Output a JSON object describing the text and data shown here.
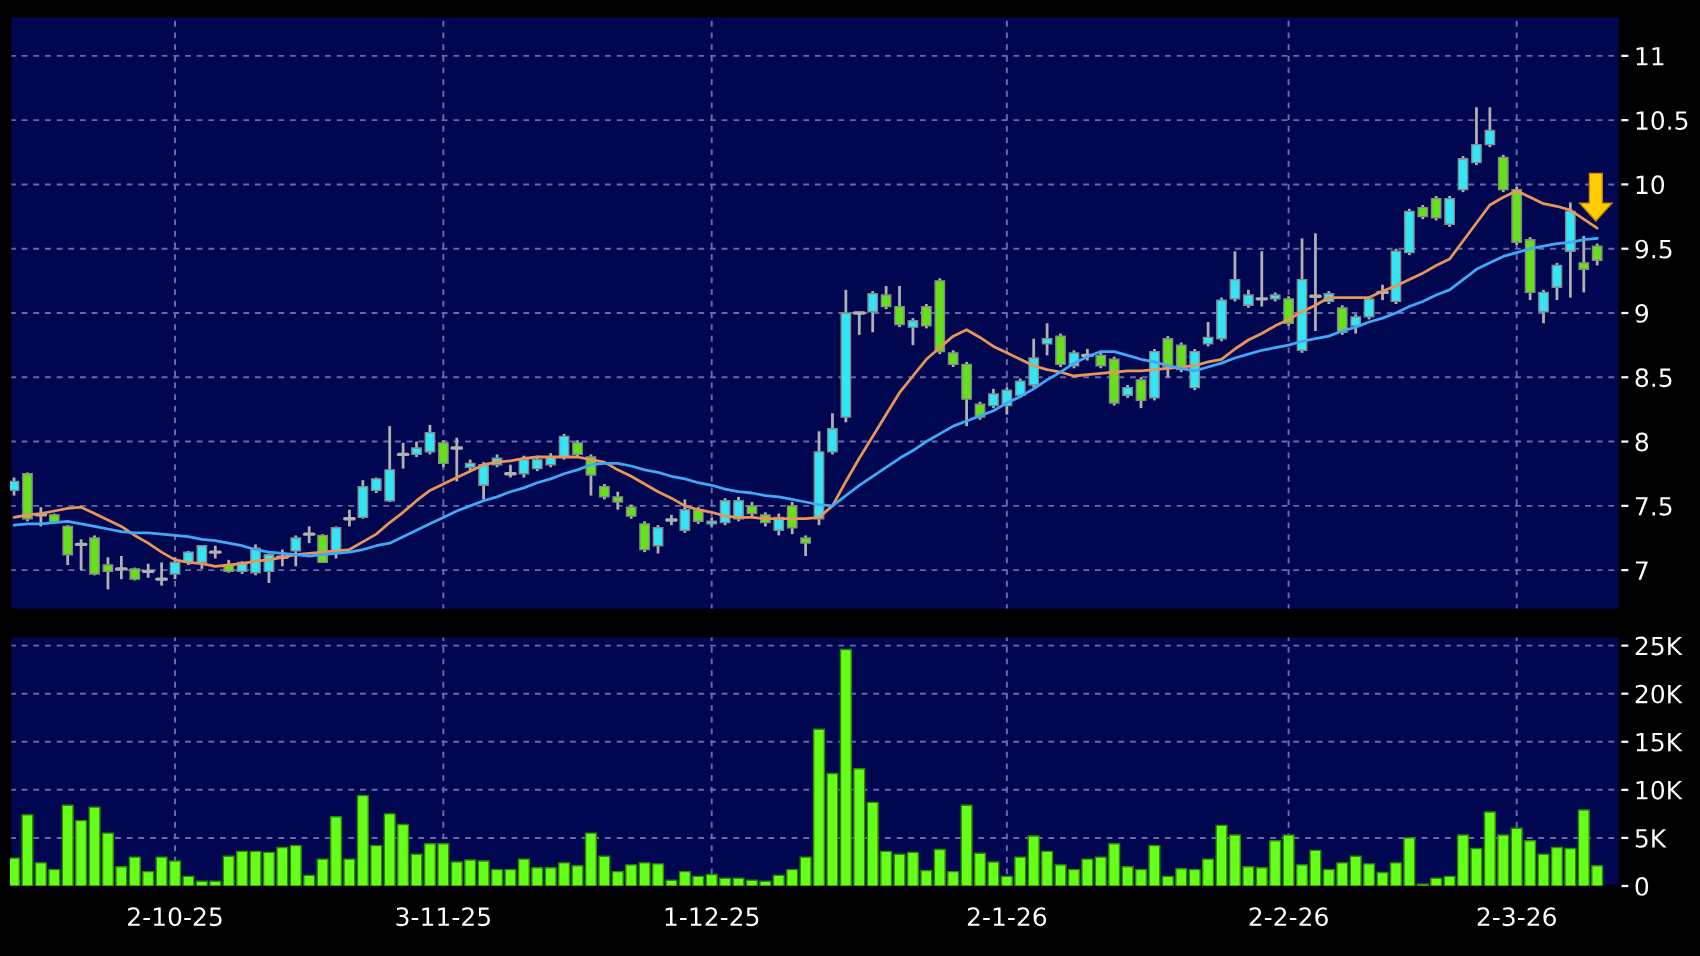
{
  "chart_data": [
    {
      "type": "candlestick",
      "grid": true,
      "tick_labels": "y",
      "ylim": [
        6.69,
        11.31
      ],
      "yticks": [
        7,
        7.5,
        8,
        8.5,
        9,
        9.5,
        10,
        10.5,
        11
      ],
      "categories": [
        null,
        null,
        null,
        null,
        null,
        null,
        null,
        null,
        null,
        null,
        null,
        null,
        null,
        null,
        null,
        null,
        null,
        null,
        null,
        null,
        null,
        null,
        null,
        null,
        null,
        null,
        null,
        null,
        null,
        null,
        null,
        null,
        null,
        null,
        null,
        null,
        null,
        null,
        null,
        null,
        null,
        null,
        null,
        null,
        null,
        null,
        null,
        null,
        null,
        null,
        null,
        null,
        null,
        null,
        null,
        null,
        null,
        null,
        null,
        null,
        null,
        null,
        null,
        null,
        null,
        null,
        null,
        null,
        null,
        null,
        null,
        null,
        null,
        null,
        null,
        null,
        null,
        null,
        null,
        null,
        null,
        null,
        null,
        null,
        null,
        null,
        null,
        null,
        null,
        null,
        null,
        null,
        null,
        null,
        null,
        null,
        null,
        null,
        null,
        null,
        null,
        null,
        null,
        null,
        null,
        null,
        null,
        null,
        null,
        null,
        null,
        null,
        null,
        null,
        null,
        null,
        null,
        null,
        null
      ],
      "ohlc": [
        [
          7.62,
          7.72,
          7.58,
          7.69
        ],
        [
          7.75,
          7.76,
          7.38,
          7.4
        ],
        [
          7.43,
          7.49,
          7.34,
          7.43
        ],
        [
          7.43,
          7.44,
          7.36,
          7.37
        ],
        [
          7.34,
          7.35,
          7.04,
          7.12
        ],
        [
          7.2,
          7.24,
          7.0,
          7.2
        ],
        [
          7.25,
          7.27,
          6.96,
          6.97
        ],
        [
          7.04,
          7.1,
          6.85,
          6.99
        ],
        [
          7.01,
          7.11,
          6.93,
          7.01
        ],
        [
          7.01,
          7.02,
          6.92,
          6.93
        ],
        [
          6.99,
          7.05,
          6.94,
          6.99
        ],
        [
          6.93,
          7.06,
          6.88,
          6.93
        ],
        [
          6.97,
          7.1,
          6.93,
          7.06
        ],
        [
          7.06,
          7.15,
          7.04,
          7.14
        ],
        [
          7.06,
          7.19,
          7.01,
          7.19
        ],
        [
          7.14,
          7.19,
          7.09,
          7.14
        ],
        [
          7.04,
          7.08,
          6.98,
          6.99
        ],
        [
          6.99,
          7.07,
          6.97,
          7.06
        ],
        [
          6.98,
          7.2,
          6.96,
          7.17
        ],
        [
          6.99,
          7.13,
          6.9,
          7.12
        ],
        [
          7.1,
          7.16,
          7.03,
          7.1
        ],
        [
          7.15,
          7.27,
          7.03,
          7.25
        ],
        [
          7.28,
          7.34,
          7.21,
          7.28
        ],
        [
          7.27,
          7.28,
          7.06,
          7.06
        ],
        [
          7.15,
          7.34,
          7.09,
          7.33
        ],
        [
          7.4,
          7.47,
          7.34,
          7.4
        ],
        [
          7.41,
          7.7,
          7.4,
          7.65
        ],
        [
          7.62,
          7.72,
          7.6,
          7.71
        ],
        [
          7.54,
          8.12,
          7.53,
          7.78
        ],
        [
          7.9,
          7.99,
          7.79,
          7.9
        ],
        [
          7.9,
          8.0,
          7.88,
          7.95
        ],
        [
          7.92,
          8.13,
          7.9,
          8.07
        ],
        [
          7.99,
          8.01,
          7.8,
          7.83
        ],
        [
          7.95,
          8.03,
          7.69,
          7.95
        ],
        [
          7.8,
          7.86,
          7.77,
          7.83
        ],
        [
          7.66,
          7.84,
          7.55,
          7.82
        ],
        [
          7.82,
          7.9,
          7.8,
          7.87
        ],
        [
          7.75,
          7.82,
          7.72,
          7.75
        ],
        [
          7.75,
          7.89,
          7.72,
          7.86
        ],
        [
          7.79,
          7.89,
          7.77,
          7.86
        ],
        [
          7.82,
          7.91,
          7.8,
          7.88
        ],
        [
          7.88,
          8.06,
          7.86,
          8.04
        ],
        [
          7.99,
          8.01,
          7.88,
          7.9
        ],
        [
          7.88,
          7.9,
          7.58,
          7.74
        ],
        [
          7.65,
          7.67,
          7.55,
          7.57
        ],
        [
          7.57,
          7.61,
          7.47,
          7.53
        ],
        [
          7.49,
          7.51,
          7.4,
          7.42
        ],
        [
          7.36,
          7.38,
          7.14,
          7.16
        ],
        [
          7.19,
          7.35,
          7.13,
          7.33
        ],
        [
          7.39,
          7.43,
          7.35,
          7.39
        ],
        [
          7.31,
          7.55,
          7.29,
          7.47
        ],
        [
          7.47,
          7.49,
          7.36,
          7.38
        ],
        [
          7.36,
          7.41,
          7.34,
          7.38
        ],
        [
          7.37,
          7.56,
          7.35,
          7.54
        ],
        [
          7.4,
          7.57,
          7.38,
          7.54
        ],
        [
          7.5,
          7.53,
          7.41,
          7.44
        ],
        [
          7.43,
          7.45,
          7.34,
          7.37
        ],
        [
          7.31,
          7.44,
          7.27,
          7.41
        ],
        [
          7.5,
          7.53,
          7.28,
          7.33
        ],
        [
          7.25,
          7.27,
          7.11,
          7.21
        ],
        [
          7.4,
          8.08,
          7.35,
          7.92
        ],
        [
          7.92,
          8.22,
          7.9,
          8.1
        ],
        [
          8.19,
          9.18,
          8.15,
          9.0
        ],
        [
          9.0,
          9.01,
          8.83,
          9.0
        ],
        [
          9.01,
          9.17,
          8.85,
          9.15
        ],
        [
          9.14,
          9.21,
          9.03,
          9.05
        ],
        [
          9.05,
          9.21,
          8.89,
          8.91
        ],
        [
          8.89,
          8.96,
          8.75,
          8.94
        ],
        [
          9.05,
          9.07,
          8.88,
          8.9
        ],
        [
          9.25,
          9.27,
          8.68,
          8.7
        ],
        [
          8.69,
          8.71,
          8.58,
          8.6
        ],
        [
          8.6,
          8.62,
          8.12,
          8.33
        ],
        [
          8.29,
          8.31,
          8.17,
          8.19
        ],
        [
          8.28,
          8.41,
          8.26,
          8.37
        ],
        [
          8.28,
          8.42,
          8.21,
          8.4
        ],
        [
          8.36,
          8.49,
          8.34,
          8.47
        ],
        [
          8.44,
          8.8,
          8.42,
          8.65
        ],
        [
          8.76,
          8.92,
          8.67,
          8.8
        ],
        [
          8.82,
          8.84,
          8.58,
          8.6
        ],
        [
          8.59,
          8.71,
          8.57,
          8.69
        ],
        [
          8.67,
          8.72,
          8.63,
          8.67
        ],
        [
          8.67,
          8.69,
          8.57,
          8.59
        ],
        [
          8.64,
          8.66,
          8.28,
          8.3
        ],
        [
          8.36,
          8.44,
          8.34,
          8.42
        ],
        [
          8.48,
          8.5,
          8.26,
          8.32
        ],
        [
          8.34,
          8.72,
          8.32,
          8.7
        ],
        [
          8.8,
          8.82,
          8.5,
          8.58
        ],
        [
          8.75,
          8.77,
          8.54,
          8.56
        ],
        [
          8.42,
          8.72,
          8.4,
          8.7
        ],
        [
          8.76,
          8.93,
          8.74,
          8.81
        ],
        [
          8.8,
          9.12,
          8.78,
          9.1
        ],
        [
          9.11,
          9.48,
          9.09,
          9.26
        ],
        [
          9.06,
          9.18,
          9.04,
          9.14
        ],
        [
          9.11,
          9.48,
          9.05,
          9.11
        ],
        [
          9.11,
          9.16,
          9.09,
          9.14
        ],
        [
          9.11,
          9.13,
          8.9,
          8.92
        ],
        [
          8.71,
          9.58,
          8.69,
          9.26
        ],
        [
          9.13,
          9.62,
          8.86,
          9.13
        ],
        [
          9.09,
          9.17,
          9.07,
          9.15
        ],
        [
          9.04,
          9.06,
          8.83,
          8.85
        ],
        [
          8.9,
          8.99,
          8.84,
          8.97
        ],
        [
          8.97,
          9.13,
          8.95,
          9.11
        ],
        [
          9.16,
          9.22,
          9.1,
          9.16
        ],
        [
          9.09,
          9.5,
          9.07,
          9.48
        ],
        [
          9.47,
          9.81,
          9.45,
          9.79
        ],
        [
          9.82,
          9.84,
          9.73,
          9.75
        ],
        [
          9.89,
          9.91,
          9.72,
          9.74
        ],
        [
          9.69,
          9.91,
          9.67,
          9.89
        ],
        [
          9.96,
          10.22,
          9.94,
          10.2
        ],
        [
          10.17,
          10.6,
          10.15,
          10.31
        ],
        [
          10.31,
          10.6,
          10.29,
          10.42
        ],
        [
          10.21,
          10.23,
          9.94,
          9.96
        ],
        [
          9.96,
          9.98,
          9.53,
          9.55
        ],
        [
          9.57,
          9.59,
          9.1,
          9.16
        ],
        [
          9.01,
          9.18,
          8.92,
          9.16
        ],
        [
          9.2,
          9.39,
          9.1,
          9.37
        ],
        [
          9.48,
          9.86,
          9.12,
          9.79
        ],
        [
          9.39,
          9.6,
          9.16,
          9.34
        ],
        [
          9.52,
          9.54,
          9.37,
          9.41
        ]
      ],
      "series": [
        {
          "type": "line",
          "color": "#e8955a",
          "values": [
            7.41,
            7.43,
            7.44,
            7.46,
            7.48,
            7.49,
            7.44,
            7.39,
            7.34,
            7.27,
            7.21,
            7.14,
            7.08,
            7.06,
            7.05,
            7.03,
            7.04,
            7.05,
            7.07,
            7.08,
            7.1,
            7.12,
            7.13,
            7.14,
            7.15,
            7.16,
            7.22,
            7.28,
            7.37,
            7.45,
            7.54,
            7.62,
            7.67,
            7.72,
            7.77,
            7.82,
            7.84,
            7.85,
            7.87,
            7.88,
            7.88,
            7.88,
            7.88,
            7.86,
            7.84,
            7.78,
            7.73,
            7.67,
            7.61,
            7.56,
            7.5,
            7.47,
            7.45,
            7.42,
            7.41,
            7.41,
            7.4,
            7.4,
            7.4,
            7.4,
            7.41,
            7.5,
            7.69,
            7.87,
            8.04,
            8.21,
            8.38,
            8.51,
            8.64,
            8.73,
            8.82,
            8.87,
            8.81,
            8.74,
            8.69,
            8.64,
            8.59,
            8.56,
            8.54,
            8.51,
            8.52,
            8.53,
            8.54,
            8.55,
            8.55,
            8.56,
            8.57,
            8.58,
            8.59,
            8.62,
            8.64,
            8.72,
            8.79,
            8.84,
            8.9,
            8.95,
            9.01,
            9.06,
            9.12,
            9.12,
            9.12,
            9.12,
            9.17,
            9.21,
            9.26,
            9.31,
            9.37,
            9.42,
            9.56,
            9.7,
            9.84,
            9.9,
            9.95,
            9.9,
            9.85,
            9.83,
            9.8,
            9.73,
            9.66
          ]
        },
        {
          "type": "line",
          "color": "#3fa9f5",
          "values": [
            7.35,
            7.36,
            7.36,
            7.37,
            7.38,
            7.36,
            7.34,
            7.32,
            7.3,
            7.29,
            7.29,
            7.28,
            7.27,
            7.26,
            7.24,
            7.23,
            7.21,
            7.19,
            7.16,
            7.14,
            7.13,
            7.12,
            7.11,
            7.12,
            7.13,
            7.14,
            7.16,
            7.19,
            7.21,
            7.26,
            7.31,
            7.36,
            7.41,
            7.46,
            7.5,
            7.54,
            7.57,
            7.61,
            7.64,
            7.68,
            7.71,
            7.75,
            7.78,
            7.82,
            7.83,
            7.83,
            7.81,
            7.78,
            7.76,
            7.73,
            7.71,
            7.68,
            7.66,
            7.63,
            7.61,
            7.6,
            7.58,
            7.57,
            7.55,
            7.53,
            7.51,
            7.5,
            7.58,
            7.66,
            7.73,
            7.8,
            7.87,
            7.93,
            8.0,
            8.06,
            8.12,
            8.16,
            8.2,
            8.24,
            8.3,
            8.35,
            8.41,
            8.48,
            8.54,
            8.61,
            8.66,
            8.7,
            8.7,
            8.67,
            8.64,
            8.62,
            8.59,
            8.57,
            8.55,
            8.58,
            8.61,
            8.65,
            8.68,
            8.71,
            8.73,
            8.75,
            8.78,
            8.8,
            8.82,
            8.86,
            8.89,
            8.93,
            8.96,
            9.0,
            9.05,
            9.09,
            9.14,
            9.18,
            9.26,
            9.34,
            9.39,
            9.44,
            9.47,
            9.5,
            9.52,
            9.54,
            9.55,
            9.57,
            9.58
          ]
        }
      ]
    },
    {
      "type": "bar",
      "grid": true,
      "color": "#66ff1a",
      "ylim": [
        0,
        26000
      ],
      "yticks": [
        0,
        {
          "value": 5000,
          "label": "5K"
        },
        {
          "value": 10000,
          "label": "10K"
        },
        {
          "value": 15000,
          "label": "15K"
        },
        {
          "value": 20000,
          "label": "20K"
        },
        {
          "value": 25000,
          "label": "25K"
        }
      ],
      "categories": [
        null,
        null,
        null,
        null,
        null,
        null,
        null,
        null,
        null,
        null,
        null,
        null,
        "2-10-25",
        null,
        null,
        null,
        null,
        null,
        null,
        null,
        null,
        null,
        null,
        null,
        null,
        null,
        null,
        null,
        null,
        null,
        null,
        null,
        "3-11-25",
        null,
        null,
        null,
        null,
        null,
        null,
        null,
        null,
        null,
        null,
        null,
        null,
        null,
        null,
        null,
        null,
        null,
        null,
        null,
        "1-12-25",
        null,
        null,
        null,
        null,
        null,
        null,
        null,
        null,
        null,
        null,
        null,
        null,
        null,
        null,
        null,
        null,
        null,
        null,
        null,
        null,
        null,
        "2-1-26",
        null,
        null,
        null,
        null,
        null,
        null,
        null,
        null,
        null,
        null,
        null,
        null,
        null,
        null,
        null,
        null,
        null,
        null,
        null,
        null,
        "2-2-26",
        null,
        null,
        null,
        null,
        null,
        null,
        null,
        null,
        null,
        null,
        null,
        null,
        null,
        null,
        null,
        null,
        "2-3-26",
        null,
        null,
        null,
        null,
        null,
        null
      ],
      "values": [
        2900,
        7400,
        2400,
        1700,
        8400,
        6800,
        8200,
        5500,
        2000,
        3000,
        1500,
        3000,
        2600,
        1000,
        500,
        500,
        3100,
        3600,
        3600,
        3500,
        4000,
        4200,
        1100,
        2800,
        7200,
        2800,
        9400,
        4200,
        7500,
        6400,
        3300,
        4400,
        4400,
        2500,
        2700,
        2600,
        1700,
        1700,
        2800,
        1900,
        1900,
        2400,
        2100,
        5500,
        3100,
        1500,
        2200,
        2400,
        2300,
        600,
        1500,
        1000,
        1200,
        800,
        800,
        600,
        500,
        1100,
        1700,
        3000,
        16300,
        11700,
        24600,
        12200,
        8700,
        3600,
        3300,
        3500,
        1600,
        3800,
        1500,
        8400,
        3400,
        2500,
        1000,
        3000,
        5200,
        3600,
        2200,
        1700,
        2800,
        3000,
        4400,
        2000,
        1700,
        4200,
        1000,
        1800,
        1700,
        2800,
        6300,
        5300,
        2000,
        1900,
        4700,
        5300,
        2200,
        3700,
        1700,
        2400,
        3100,
        2300,
        1400,
        2400,
        5000,
        200,
        800,
        1000,
        5300,
        3900,
        7700,
        5300,
        6000,
        4700,
        3300,
        4000,
        3900,
        7900,
        2100
      ]
    }
  ]
}
